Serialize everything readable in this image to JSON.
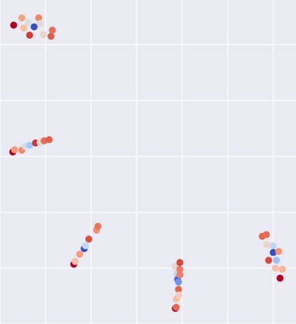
{
  "chart_data": {
    "type": "scatter",
    "title": "",
    "xlabel": "",
    "ylabel": "",
    "xlim": [
      0,
      6.5
    ],
    "ylim": [
      0,
      5.8
    ],
    "grid": true,
    "legend": "none",
    "background": "#eaeaf2",
    "grid_color": "#ffffff",
    "point_alpha": 1,
    "colormap": "coolwarm",
    "points": [
      {
        "x": 0.3,
        "y": 5.35,
        "color": "#b40426"
      },
      {
        "x": 0.48,
        "y": 5.48,
        "color": "#f4a383"
      },
      {
        "x": 0.52,
        "y": 5.3,
        "color": "#f6bda2"
      },
      {
        "x": 0.62,
        "y": 5.4,
        "color": "#dbdcde"
      },
      {
        "x": 0.65,
        "y": 5.17,
        "color": "#cf3c36"
      },
      {
        "x": 0.75,
        "y": 5.32,
        "color": "#3b4cc0"
      },
      {
        "x": 0.85,
        "y": 5.48,
        "color": "#ef8567"
      },
      {
        "x": 0.88,
        "y": 5.38,
        "color": "#e1dad6"
      },
      {
        "x": 0.95,
        "y": 5.18,
        "color": "#ead4c8"
      },
      {
        "x": 1.12,
        "y": 5.15,
        "color": "#dc5d4a"
      },
      {
        "x": 1.15,
        "y": 5.26,
        "color": "#e57058"
      },
      {
        "x": 0.28,
        "y": 3.08,
        "color": "#b40426"
      },
      {
        "x": 0.32,
        "y": 3.12,
        "color": "#f49a7b"
      },
      {
        "x": 0.48,
        "y": 3.11,
        "color": "#f08a6c"
      },
      {
        "x": 0.55,
        "y": 3.18,
        "color": "#d7dce3"
      },
      {
        "x": 0.65,
        "y": 3.2,
        "color": "#aac7fd"
      },
      {
        "x": 0.78,
        "y": 3.24,
        "color": "#c83836"
      },
      {
        "x": 0.88,
        "y": 3.25,
        "color": "#e6d7cf"
      },
      {
        "x": 0.97,
        "y": 3.28,
        "color": "#e46e56"
      },
      {
        "x": 1.08,
        "y": 3.3,
        "color": "#de614d"
      },
      {
        "x": 1.62,
        "y": 1.07,
        "color": "#b40426"
      },
      {
        "x": 1.65,
        "y": 1.12,
        "color": "#f6bfa6"
      },
      {
        "x": 1.75,
        "y": 1.25,
        "color": "#f59c7d"
      },
      {
        "x": 1.85,
        "y": 1.35,
        "color": "#3b4cc0"
      },
      {
        "x": 1.88,
        "y": 1.4,
        "color": "#c5d6f2"
      },
      {
        "x": 1.95,
        "y": 1.52,
        "color": "#d65244"
      },
      {
        "x": 2.12,
        "y": 1.68,
        "color": "#f29072"
      },
      {
        "x": 2.15,
        "y": 1.75,
        "color": "#e8765c"
      },
      {
        "x": 3.85,
        "y": 1.03,
        "color": "#e5d8d1"
      },
      {
        "x": 3.88,
        "y": 0.9,
        "color": "#c4d5f3"
      },
      {
        "x": 3.9,
        "y": 0.8,
        "color": "#4f69d9"
      },
      {
        "x": 3.92,
        "y": 0.75,
        "color": "#7396f5"
      },
      {
        "x": 3.92,
        "y": 0.62,
        "color": "#e0654f"
      },
      {
        "x": 3.87,
        "y": 0.45,
        "color": "#f6bda2"
      },
      {
        "x": 3.93,
        "y": 0.52,
        "color": "#efcfbf"
      },
      {
        "x": 3.95,
        "y": 0.88,
        "color": "#ec7f63"
      },
      {
        "x": 3.95,
        "y": 0.98,
        "color": "#ea7b60"
      },
      {
        "x": 3.95,
        "y": 1.1,
        "color": "#d24b40"
      },
      {
        "x": 3.85,
        "y": 0.28,
        "color": "#b40426"
      },
      {
        "x": 3.87,
        "y": 0.3,
        "color": "#e36b54"
      },
      {
        "x": 5.76,
        "y": 1.57,
        "color": "#e16751"
      },
      {
        "x": 5.85,
        "y": 1.6,
        "color": "#e46e56"
      },
      {
        "x": 5.86,
        "y": 1.42,
        "color": "#e8d6cc"
      },
      {
        "x": 6.0,
        "y": 1.4,
        "color": "#c0d4f5"
      },
      {
        "x": 6.0,
        "y": 1.28,
        "color": "#3b4cc0"
      },
      {
        "x": 6.12,
        "y": 1.3,
        "color": "#f39475"
      },
      {
        "x": 5.9,
        "y": 1.14,
        "color": "#d24b40"
      },
      {
        "x": 6.07,
        "y": 1.14,
        "color": "#9ebeff"
      },
      {
        "x": 6.05,
        "y": 1.0,
        "color": "#f5c0a7"
      },
      {
        "x": 6.2,
        "y": 0.98,
        "color": "#f7b599"
      },
      {
        "x": 6.15,
        "y": 0.82,
        "color": "#b40426"
      }
    ]
  }
}
